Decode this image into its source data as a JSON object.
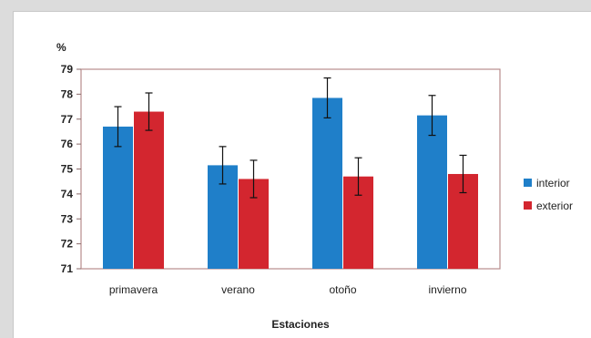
{
  "chart_data": {
    "type": "bar",
    "ylabel": "%",
    "xlabel": "Estaciones",
    "ylim": [
      71,
      79
    ],
    "yticks": [
      71,
      72,
      73,
      74,
      75,
      76,
      77,
      78,
      79
    ],
    "categories": [
      "primavera",
      "verano",
      "otoño",
      "invierno"
    ],
    "series": [
      {
        "name": "interior",
        "color": "#1f7fc9",
        "values": [
          76.7,
          75.15,
          77.85,
          77.15
        ],
        "error": [
          0.8,
          0.75,
          0.8,
          0.8
        ]
      },
      {
        "name": "exterior",
        "color": "#d3262f",
        "values": [
          77.3,
          74.6,
          74.7,
          74.8
        ],
        "error": [
          0.75,
          0.75,
          0.75,
          0.75
        ]
      }
    ],
    "legend_position": "right",
    "grid": false
  }
}
